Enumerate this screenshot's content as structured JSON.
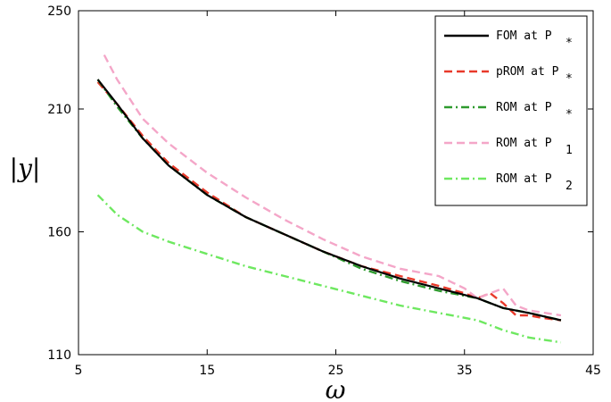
{
  "chart_data": {
    "type": "line",
    "xlabel": "ω",
    "ylabel": "|y|",
    "xlim": [
      5,
      45
    ],
    "ylim": [
      110,
      250
    ],
    "xticks": [
      "5",
      "15",
      "25",
      "35",
      "45"
    ],
    "yticks": [
      "110",
      "160",
      "210",
      "250"
    ],
    "grid": false,
    "legend_position": "top-right",
    "series": [
      {
        "name": "FOM at P*",
        "legend_main": "FOM at P",
        "legend_sub": "*",
        "color": "#000000",
        "dash": "solid",
        "x": [
          6.5,
          8,
          10,
          12,
          15,
          18,
          21,
          24,
          27,
          30,
          33,
          36,
          38,
          40,
          42.5
        ],
        "y": [
          222,
          212,
          198,
          187,
          175,
          166,
          159,
          152,
          146,
          141,
          137,
          133,
          129,
          127,
          124
        ]
      },
      {
        "name": "pROM at P*",
        "legend_main": "pROM at P",
        "legend_sub": "*",
        "color": "#e8392a",
        "dash": "dashed",
        "x": [
          6.5,
          8,
          10,
          12,
          15,
          18,
          21,
          24,
          27,
          30,
          33,
          35,
          36,
          37,
          38,
          39,
          40,
          41,
          42.5
        ],
        "y": [
          221,
          212,
          199,
          188,
          176,
          166,
          159,
          152,
          146,
          142,
          138,
          135,
          133,
          135,
          131,
          126,
          126,
          125,
          124
        ]
      },
      {
        "name": "ROM at P*",
        "legend_main": "ROM at P",
        "legend_sub": "*",
        "color": "#2e9a2e",
        "dash": "dashdot",
        "x": [
          6.5,
          8,
          10,
          12,
          15,
          18,
          21,
          24,
          27,
          30,
          33,
          36,
          38,
          40,
          42.5
        ],
        "y": [
          222,
          211,
          198,
          187,
          175,
          166,
          159,
          152,
          145,
          140,
          136,
          133,
          129,
          127,
          124
        ]
      },
      {
        "name": "ROM at P1",
        "legend_main": "ROM at P",
        "legend_sub": "1",
        "color": "#f4a6c8",
        "dash": "dashed",
        "x": [
          7,
          8,
          10,
          12,
          15,
          18,
          21,
          24,
          27,
          30,
          33,
          35,
          36,
          37,
          38,
          39,
          40,
          42.5
        ],
        "y": [
          232,
          222,
          206,
          196,
          184,
          174,
          165,
          157,
          150,
          145,
          142,
          137,
          133,
          135,
          137,
          130,
          128,
          126
        ]
      },
      {
        "name": "ROM at P2",
        "legend_main": "ROM at P",
        "legend_sub": "2",
        "color": "#6ee860",
        "dash": "dashdot",
        "x": [
          6.5,
          8,
          10,
          12,
          15,
          18,
          21,
          24,
          27,
          30,
          33,
          36,
          38,
          40,
          42.5
        ],
        "y": [
          175,
          167,
          160,
          156,
          151,
          146,
          142,
          138,
          134,
          130,
          127,
          124,
          120,
          117,
          115
        ]
      }
    ]
  }
}
